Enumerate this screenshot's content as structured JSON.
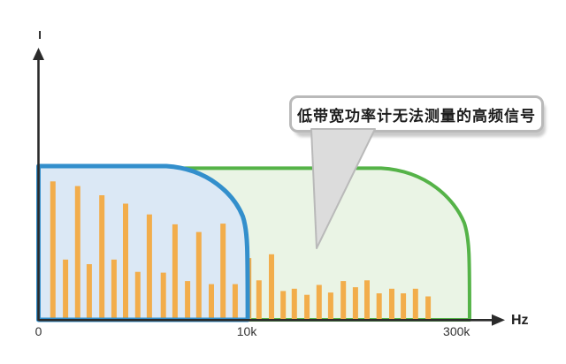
{
  "chart_data": {
    "type": "bar",
    "title": "",
    "xlabel": "Hz",
    "ylabel": "I",
    "x_scale": "nonlinear frequency axis",
    "bar_color": "#f2ad4b",
    "axis_color": "#2b2b2b",
    "x_ticks": [
      {
        "label": "0",
        "f": 0.0
      },
      {
        "label": "10k",
        "f": 0.447
      },
      {
        "label": "300k",
        "f": 0.897
      }
    ],
    "regions": [
      {
        "name": "low-bandwidth-meter-range",
        "cutoff_label": "10k",
        "cutoff_f": 0.449,
        "top_a": 1.0,
        "corner": 92,
        "stroke": "#338fcc",
        "fill": "#dbe8f5"
      },
      {
        "name": "wide-bandwidth-range",
        "cutoff_label": "300k",
        "cutoff_f": 0.925,
        "top_a": 0.986,
        "corner": 100,
        "stroke": "#55b348",
        "fill": "#eaf4e5"
      }
    ],
    "bars": [
      {
        "f": 0.031,
        "a": 0.9
      },
      {
        "f": 0.058,
        "a": 0.39
      },
      {
        "f": 0.084,
        "a": 0.87
      },
      {
        "f": 0.109,
        "a": 0.36
      },
      {
        "f": 0.136,
        "a": 0.81
      },
      {
        "f": 0.162,
        "a": 0.39
      },
      {
        "f": 0.187,
        "a": 0.755
      },
      {
        "f": 0.213,
        "a": 0.31
      },
      {
        "f": 0.238,
        "a": 0.685
      },
      {
        "f": 0.268,
        "a": 0.305
      },
      {
        "f": 0.293,
        "a": 0.62
      },
      {
        "f": 0.32,
        "a": 0.25
      },
      {
        "f": 0.344,
        "a": 0.57
      },
      {
        "f": 0.371,
        "a": 0.23
      },
      {
        "f": 0.396,
        "a": 0.625
      },
      {
        "f": 0.422,
        "a": 0.23
      },
      {
        "f": 0.451,
        "a": 0.4
      },
      {
        "f": 0.473,
        "a": 0.255
      },
      {
        "f": 0.5,
        "a": 0.425
      },
      {
        "f": 0.525,
        "a": 0.185
      },
      {
        "f": 0.549,
        "a": 0.2
      },
      {
        "f": 0.576,
        "a": 0.16
      },
      {
        "f": 0.602,
        "a": 0.225
      },
      {
        "f": 0.627,
        "a": 0.175
      },
      {
        "f": 0.654,
        "a": 0.25
      },
      {
        "f": 0.68,
        "a": 0.21
      },
      {
        "f": 0.705,
        "a": 0.255
      },
      {
        "f": 0.731,
        "a": 0.17
      },
      {
        "f": 0.758,
        "a": 0.2
      },
      {
        "f": 0.783,
        "a": 0.17
      },
      {
        "f": 0.809,
        "a": 0.2
      },
      {
        "f": 0.836,
        "a": 0.15
      }
    ],
    "annotation": {
      "text": "低带宽功率计无法测量的高频信号",
      "bubble_fill": "#ffffff",
      "bubble_stroke": "#b9b9b9",
      "tail_fill": "#dcdcdc"
    }
  }
}
